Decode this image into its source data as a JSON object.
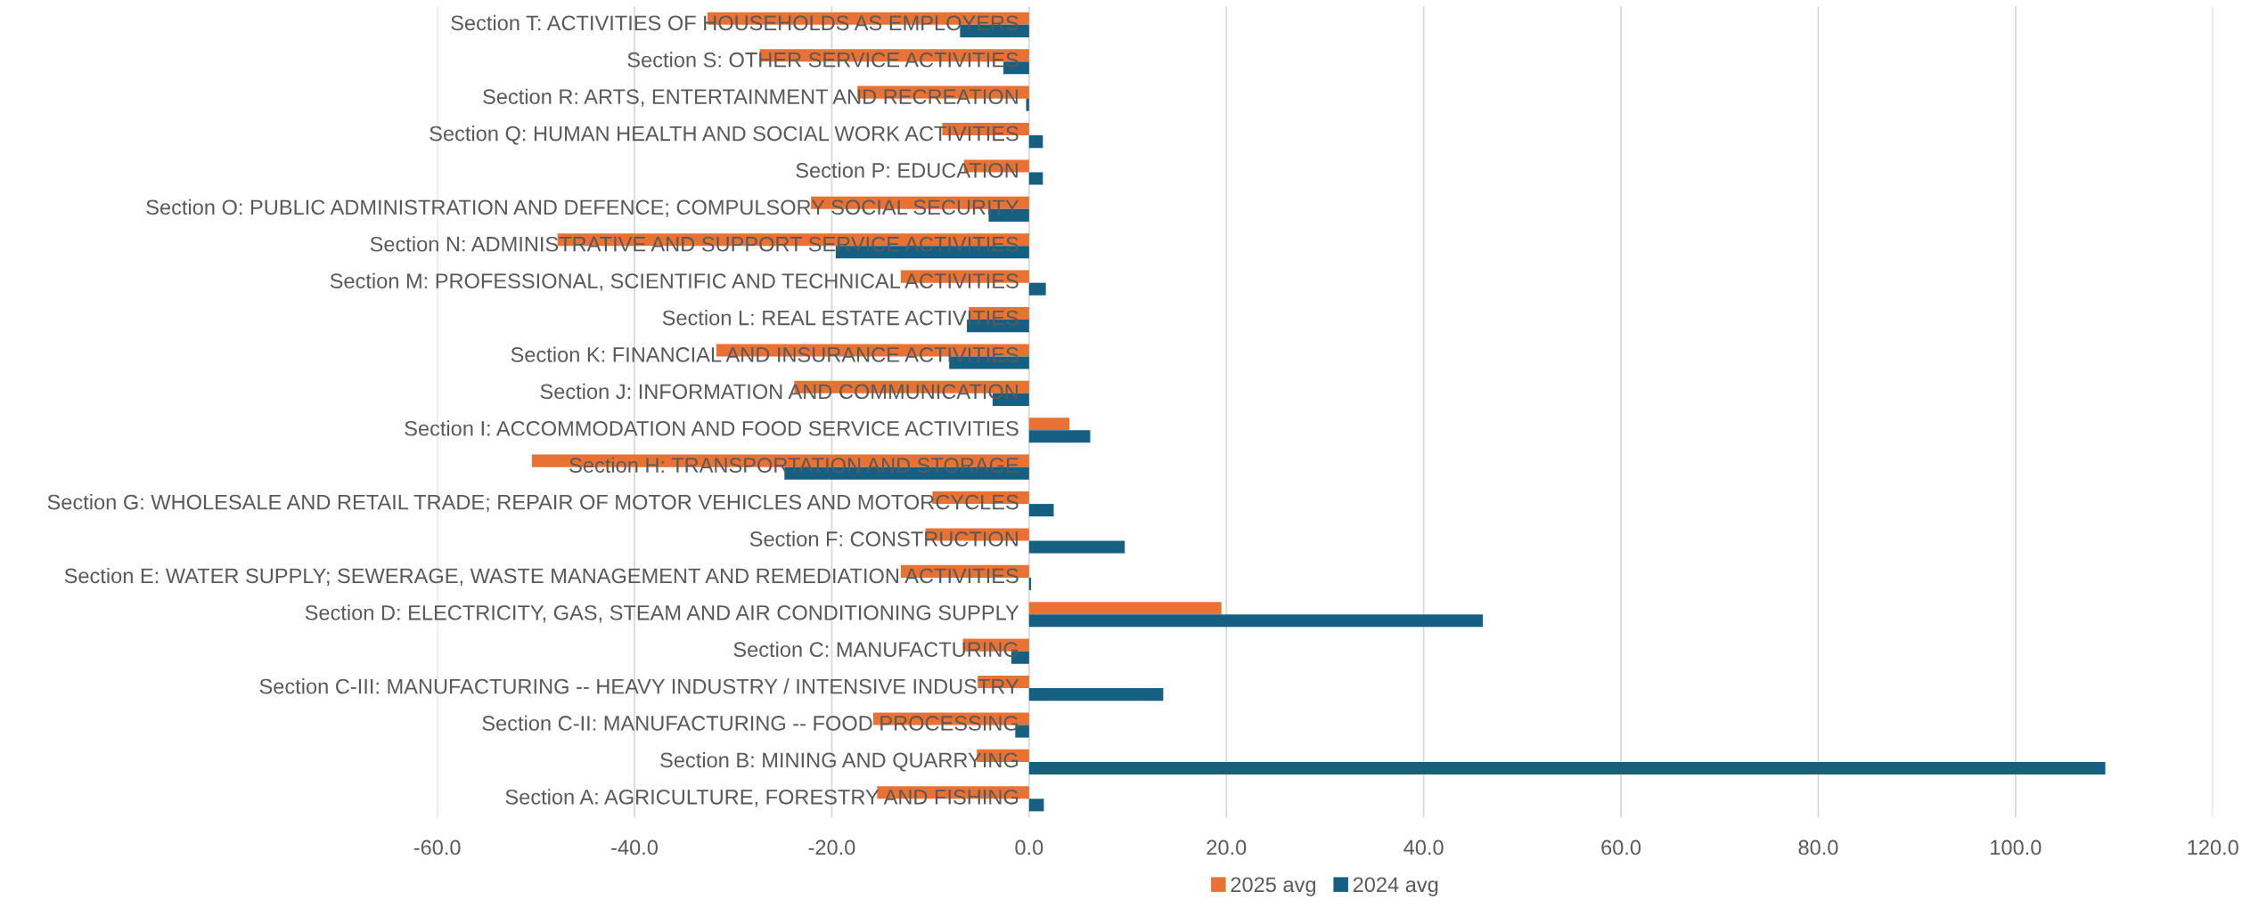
{
  "chart_data": {
    "type": "bar",
    "orientation": "horizontal",
    "categories": [
      "Section T: ACTIVITIES OF HOUSEHOLDS AS EMPLOYERS",
      "Section S: OTHER SERVICE ACTIVITIES",
      "Section R: ARTS, ENTERTAINMENT AND RECREATION",
      "Section Q: HUMAN HEALTH AND SOCIAL WORK ACTIVITIES",
      "Section P: EDUCATION",
      "Section O: PUBLIC ADMINISTRATION AND DEFENCE; COMPULSORY SOCIAL SECURITY",
      "Section N: ADMINISTRATIVE AND SUPPORT SERVICE ACTIVITIES",
      "Section M: PROFESSIONAL, SCIENTIFIC AND TECHNICAL ACTIVITIES",
      "Section L: REAL ESTATE ACTIVITIES",
      "Section K: FINANCIAL AND INSURANCE ACTIVITIES",
      "Section J: INFORMATION AND COMMUNICATION",
      "Section I: ACCOMMODATION AND FOOD SERVICE ACTIVITIES",
      "Section H: TRANSPORTATION AND STORAGE",
      "Section G: WHOLESALE AND RETAIL TRADE; REPAIR OF MOTOR VEHICLES AND MOTORCYCLES",
      "Section F: CONSTRUCTION",
      "Section E: WATER SUPPLY; SEWERAGE, WASTE MANAGEMENT AND REMEDIATION ACTIVITIES",
      "Section D: ELECTRICITY, GAS, STEAM AND AIR CONDITIONING SUPPLY",
      "Section C: MANUFACTURING",
      "Section C-III: MANUFACTURING -- HEAVY INDUSTRY / INTENSIVE INDUSTRY",
      "Section C-II: MANUFACTURING -- FOOD PROCESSING",
      "Section B: MINING AND QUARRYING",
      "Section A: AGRICULTURE, FORESTRY AND FISHING"
    ],
    "series": [
      {
        "name": "2025 avg",
        "color": "#e97132",
        "values": [
          -32.6,
          -27.3,
          -17.4,
          -8.8,
          -6.6,
          -22.1,
          -47.8,
          -13.0,
          -6.1,
          -31.7,
          -23.8,
          4.1,
          -50.4,
          -9.8,
          -10.5,
          -13.0,
          19.5,
          -6.7,
          -5.2,
          -15.8,
          -5.3,
          -15.4
        ]
      },
      {
        "name": "2024 avg",
        "color": "#156082",
        "values": [
          -7.0,
          -2.6,
          -0.3,
          1.4,
          1.4,
          -4.1,
          -19.6,
          1.7,
          -6.3,
          -8.1,
          -3.7,
          6.2,
          -24.8,
          2.5,
          9.7,
          0.2,
          46.0,
          -1.8,
          13.6,
          -1.4,
          109.1,
          1.5
        ]
      }
    ],
    "xlim": [
      -60,
      120
    ],
    "xticks": [
      {
        "value": -60,
        "label": "-60.0"
      },
      {
        "value": -40,
        "label": "-40.0"
      },
      {
        "value": -20,
        "label": "-20.0"
      },
      {
        "value": 0,
        "label": "0.0"
      },
      {
        "value": 20,
        "label": "20.0"
      },
      {
        "value": 40,
        "label": "40.0"
      },
      {
        "value": 60,
        "label": "60.0"
      },
      {
        "value": 80,
        "label": "80.0"
      },
      {
        "value": 100,
        "label": "100.0"
      },
      {
        "value": 120,
        "label": "120.0"
      }
    ],
    "grid": "x",
    "legend": "bottom"
  }
}
